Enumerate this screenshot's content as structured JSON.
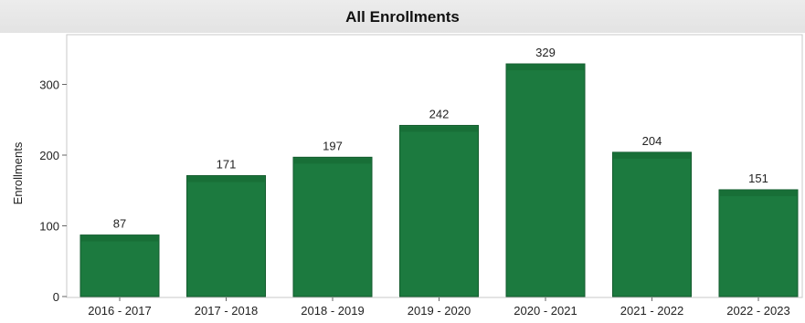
{
  "chart_data": {
    "type": "bar",
    "title": "All Enrollments",
    "xlabel": "",
    "ylabel": "Enrollments",
    "categories": [
      "2016 - 2017",
      "2017 - 2018",
      "2018 - 2019",
      "2019 - 2020",
      "2020 - 2021",
      "2021 - 2022",
      "2022 - 2023"
    ],
    "values": [
      87,
      171,
      197,
      242,
      329,
      204,
      151
    ],
    "ylim": [
      0,
      350
    ],
    "yticks": [
      0,
      100,
      200,
      300
    ],
    "grid": false,
    "legend": "none",
    "bar_color": "#1c7a3f",
    "bar_edge_color": "#125a2c"
  }
}
